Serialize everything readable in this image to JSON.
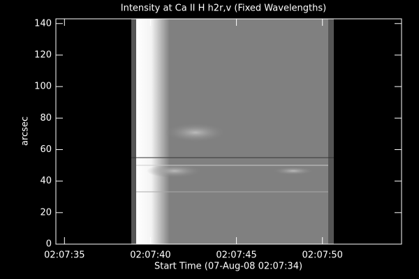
{
  "chart_data": {
    "type": "image",
    "title": "Intensity at Ca II H h2r,v (Fixed Wavelengths)",
    "x_label": "Start Time (07-Aug-08 02:07:34)",
    "y_label": "arcsec",
    "xlim": [
      34.5,
      54.6
    ],
    "xticks": [
      {
        "value": 35,
        "label": "02:07:35"
      },
      {
        "value": 40,
        "label": "02:07:40"
      },
      {
        "value": 45,
        "label": "02:07:45"
      },
      {
        "value": 50,
        "label": "02:07:50"
      }
    ],
    "ylim": [
      0,
      143
    ],
    "yticks": [
      0,
      20,
      40,
      60,
      80,
      100,
      120,
      140
    ]
  }
}
